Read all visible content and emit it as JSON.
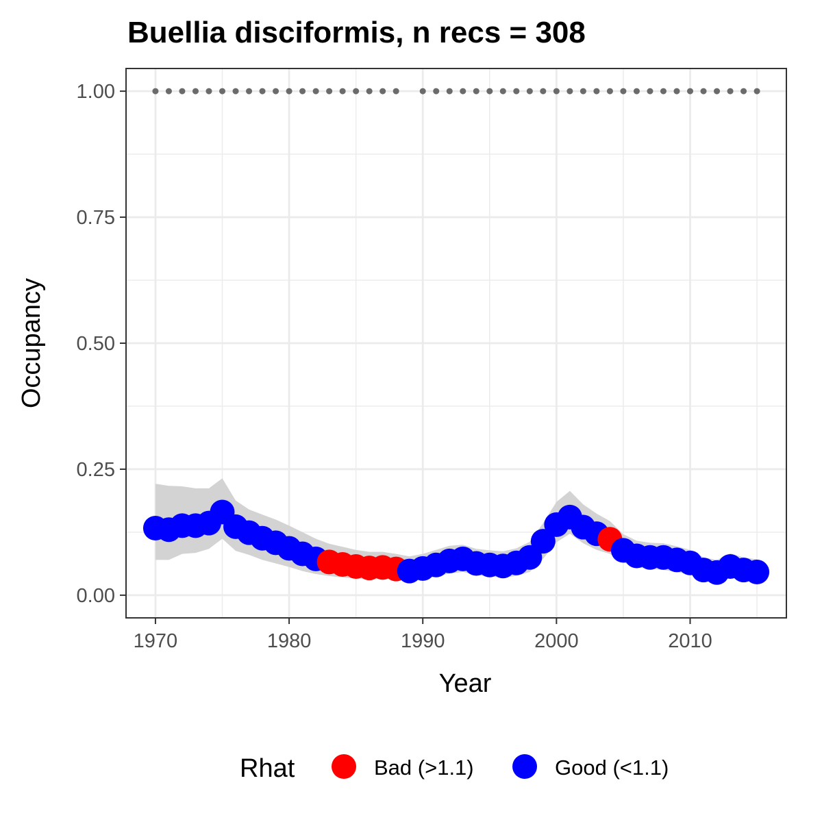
{
  "chart_data": {
    "type": "line",
    "title": "Buellia disciformis, n recs = 308",
    "xlabel": "Year",
    "ylabel": "Occupancy",
    "xlim": [
      1967.8,
      2017.2
    ],
    "ylim": [
      -0.045,
      1.045
    ],
    "x_ticks": [
      1970,
      1980,
      1990,
      2000,
      2010
    ],
    "x_tick_labels": [
      "1970",
      "1980",
      "1990",
      "2000",
      "2010"
    ],
    "y_ticks": [
      0,
      0.25,
      0.5,
      0.75,
      1.0
    ],
    "y_tick_labels": [
      "0.00",
      "0.25",
      "0.50",
      "0.75",
      "1.00"
    ],
    "grid": true,
    "legend_placement": "bottom",
    "colors": {
      "bad": "#ff0000",
      "good": "#0000ff",
      "ribbon": "#d3d3d3",
      "reference_dots": "#6b6b6b",
      "panel_border": "#333333",
      "grid": "#ebebeb"
    },
    "legend": {
      "title": "Rhat",
      "entries": [
        {
          "label": "Bad (>1.1)",
          "color": "#ff0000"
        },
        {
          "label": "Good (<1.1)",
          "color": "#0000ff"
        }
      ]
    },
    "series": [
      {
        "x": [
          1970,
          1971,
          1972,
          1973,
          1974,
          1975,
          1976,
          1977,
          1978,
          1979,
          1980,
          1981,
          1982,
          1983,
          1984,
          1985,
          1986,
          1987,
          1988,
          1989,
          1990,
          1991,
          1992,
          1993,
          1994,
          1995,
          1996,
          1997,
          1998,
          1999,
          2000,
          2001,
          2002,
          2003,
          2004,
          2005,
          2006,
          2007,
          2008,
          2009,
          2010,
          2011,
          2012,
          2013,
          2014,
          2015
        ],
        "y": [
          0.133,
          0.13,
          0.138,
          0.138,
          0.143,
          0.165,
          0.136,
          0.124,
          0.113,
          0.104,
          0.093,
          0.082,
          0.072,
          0.066,
          0.061,
          0.057,
          0.054,
          0.055,
          0.052,
          0.048,
          0.053,
          0.06,
          0.068,
          0.072,
          0.063,
          0.06,
          0.058,
          0.064,
          0.075,
          0.107,
          0.14,
          0.155,
          0.135,
          0.122,
          0.111,
          0.089,
          0.078,
          0.075,
          0.075,
          0.07,
          0.064,
          0.05,
          0.045,
          0.057,
          0.05,
          0.046
        ],
        "lower": [
          0.07,
          0.07,
          0.082,
          0.084,
          0.092,
          0.112,
          0.088,
          0.08,
          0.07,
          0.063,
          0.056,
          0.048,
          0.042,
          0.038,
          0.035,
          0.033,
          0.031,
          0.033,
          0.031,
          0.028,
          0.032,
          0.037,
          0.043,
          0.046,
          0.04,
          0.037,
          0.035,
          0.038,
          0.046,
          0.072,
          0.105,
          0.122,
          0.103,
          0.09,
          0.082,
          0.065,
          0.055,
          0.052,
          0.05,
          0.046,
          0.041,
          0.032,
          0.028,
          0.035,
          0.03,
          0.028
        ],
        "upper": [
          0.221,
          0.217,
          0.216,
          0.212,
          0.212,
          0.232,
          0.188,
          0.17,
          0.16,
          0.15,
          0.138,
          0.125,
          0.112,
          0.102,
          0.096,
          0.09,
          0.086,
          0.086,
          0.082,
          0.077,
          0.082,
          0.09,
          0.098,
          0.1,
          0.092,
          0.089,
          0.087,
          0.093,
          0.106,
          0.143,
          0.185,
          0.207,
          0.18,
          0.162,
          0.147,
          0.121,
          0.108,
          0.104,
          0.103,
          0.097,
          0.09,
          0.075,
          0.07,
          0.083,
          0.075,
          0.071
        ],
        "rhat": [
          "Good",
          "Good",
          "Good",
          "Good",
          "Good",
          "Good",
          "Good",
          "Good",
          "Good",
          "Good",
          "Good",
          "Good",
          "Good",
          "Bad",
          "Bad",
          "Bad",
          "Bad",
          "Bad",
          "Bad",
          "Good",
          "Good",
          "Good",
          "Good",
          "Good",
          "Good",
          "Good",
          "Good",
          "Good",
          "Good",
          "Good",
          "Good",
          "Good",
          "Good",
          "Good",
          "Bad",
          "Good",
          "Good",
          "Good",
          "Good",
          "Good",
          "Good",
          "Good",
          "Good",
          "Good",
          "Good",
          "Good"
        ]
      }
    ],
    "reference_points": {
      "y": 1.0,
      "x": [
        1970,
        1971,
        1972,
        1973,
        1974,
        1975,
        1976,
        1977,
        1978,
        1979,
        1980,
        1981,
        1982,
        1983,
        1984,
        1985,
        1986,
        1987,
        1988,
        1990,
        1991,
        1992,
        1993,
        1994,
        1995,
        1996,
        1997,
        1998,
        1999,
        2000,
        2001,
        2002,
        2003,
        2004,
        2005,
        2006,
        2007,
        2008,
        2009,
        2010,
        2011,
        2012,
        2013,
        2014,
        2015
      ]
    }
  }
}
